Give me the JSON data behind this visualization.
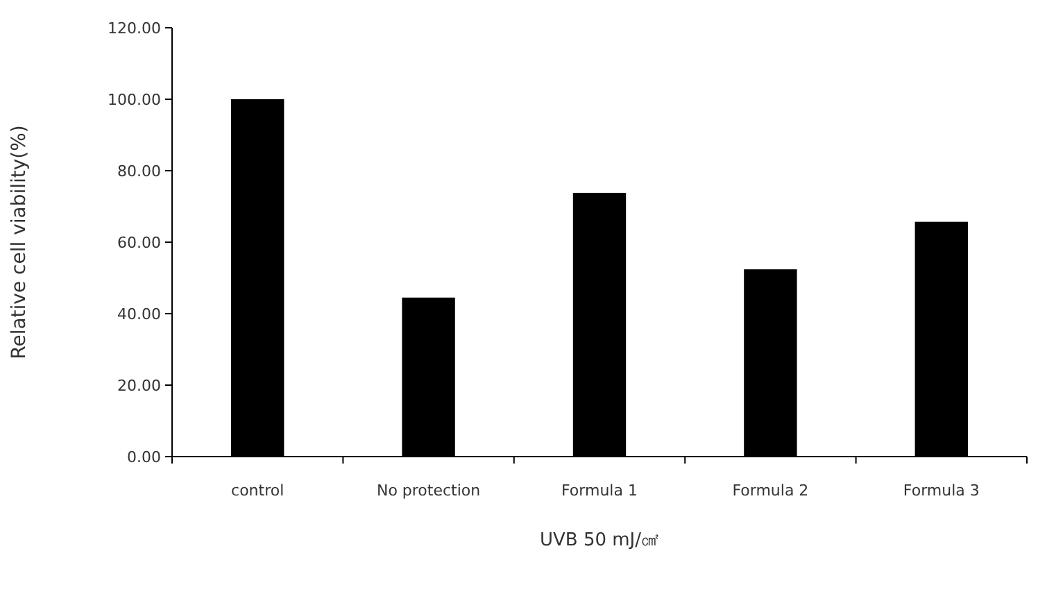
{
  "chart_data": {
    "type": "bar",
    "ylabel": "Relative cell viability(%)",
    "xlabel": "UVB 50 mJ/㎠",
    "categories": [
      "control",
      "No protection",
      "Formula 1",
      "Formula 2",
      "Formula 3"
    ],
    "values": [
      100,
      44.5,
      73.8,
      52.4,
      65.7
    ],
    "color": "#000000",
    "ylim": [
      0,
      120
    ],
    "yticks": [
      {
        "value": 0,
        "label": "0.00"
      },
      {
        "value": 20,
        "label": "20.00"
      },
      {
        "value": 40,
        "label": "40.00"
      },
      {
        "value": 60,
        "label": "60.00"
      },
      {
        "value": 80,
        "label": "80.00"
      },
      {
        "value": 100,
        "label": "100.00"
      },
      {
        "value": 120,
        "label": "120.00"
      }
    ],
    "grid": false
  }
}
